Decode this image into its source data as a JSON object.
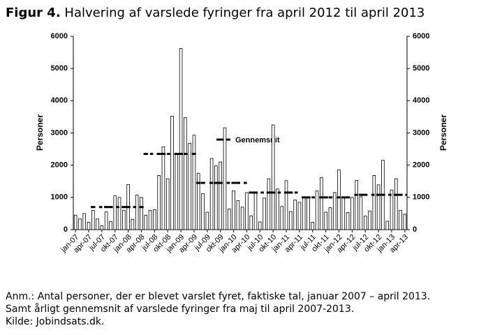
{
  "chart_data": {
    "type": "bar",
    "title": {
      "label": "Figur 4.",
      "text": "Halvering af varslede fyringer fra april 2012 til april 2013"
    },
    "ylabel": "Personer",
    "y2label": "Personer",
    "categories": [
      "jan-07",
      null,
      null,
      "apr-07",
      null,
      null,
      "jul-07",
      null,
      null,
      "okt-07",
      null,
      null,
      "jan-08",
      null,
      null,
      "apr-08",
      null,
      null,
      "jul-08",
      null,
      null,
      "okt-08",
      null,
      null,
      "jan-09",
      null,
      null,
      "apr-09",
      null,
      null,
      "jul-09",
      null,
      null,
      "okt-09",
      null,
      null,
      "jan-10",
      null,
      null,
      "apr-10",
      null,
      null,
      "jul-10",
      null,
      null,
      "okt-10",
      null,
      null,
      "jan-11",
      null,
      null,
      "apr-11",
      null,
      null,
      "jul-11",
      null,
      null,
      "okt-11",
      null,
      null,
      "jan-12",
      null,
      null,
      "apr-12",
      null,
      null,
      "jul-12",
      null,
      null,
      "okt-12",
      null,
      null,
      "jan-13",
      null,
      null,
      "apr-13"
    ],
    "values": [
      450,
      330,
      500,
      230,
      600,
      330,
      120,
      550,
      250,
      1050,
      1000,
      600,
      1400,
      320,
      1070,
      1000,
      450,
      600,
      620,
      1680,
      2570,
      1580,
      3520,
      2330,
      5620,
      3480,
      2680,
      2930,
      1750,
      1120,
      540,
      2210,
      1980,
      2100,
      3160,
      640,
      1200,
      900,
      700,
      1150,
      430,
      1150,
      240,
      980,
      1580,
      3250,
      1260,
      720,
      1520,
      560,
      920,
      850,
      1000,
      1020,
      230,
      1200,
      1620,
      540,
      680,
      1150,
      1850,
      1000,
      530,
      1000,
      1530,
      1020,
      420,
      580,
      1680,
      1390,
      2150,
      260,
      1230,
      1580,
      600,
      480
    ],
    "color": "#ffffff",
    "average": {
      "name": "Gennemsnit",
      "color": "#000000",
      "values": [
        null,
        null,
        null,
        null,
        700,
        700,
        700,
        700,
        700,
        700,
        700,
        700,
        700,
        700,
        700,
        700,
        2350,
        2350,
        2350,
        2350,
        2350,
        2350,
        2350,
        2350,
        2350,
        2350,
        2350,
        2350,
        1450,
        1450,
        1450,
        1450,
        1450,
        1450,
        1450,
        1450,
        1450,
        1450,
        1450,
        1450,
        1150,
        1150,
        1150,
        1150,
        1150,
        1150,
        1150,
        1150,
        1150,
        1150,
        1150,
        1150,
        1000,
        1000,
        1000,
        1000,
        1000,
        1000,
        1000,
        1000,
        1000,
        1000,
        1000,
        1000,
        1080,
        1080,
        1080,
        1080,
        1080,
        1080,
        1080,
        1080,
        1080,
        1080,
        1080,
        1080
      ]
    },
    "ylim": [
      0,
      6000
    ],
    "yticks": [
      0,
      1000,
      2000,
      3000,
      4000,
      5000,
      6000
    ],
    "y2lim": [
      0,
      6000
    ],
    "y2ticks": [
      0,
      1000,
      2000,
      3000,
      4000,
      5000,
      6000
    ],
    "grid": false,
    "notes": [
      "Anm.: Antal personer, der er blevet varslet fyret, faktiske tal, januar 2007 – april 2013.",
      "Samt årligt gennemsnit af varslede fyringer fra maj til april 2007-2013.",
      "Kilde: Jobindsats.dk."
    ]
  }
}
